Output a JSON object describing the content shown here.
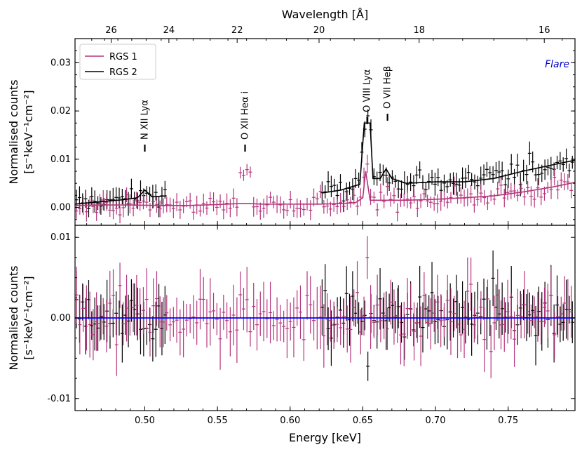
{
  "colors": {
    "rgs1": "#b5357d",
    "rgs2": "#000000",
    "zero_line": "#0000ff",
    "flare": "#0000cc"
  },
  "chart_data": [
    {
      "type": "scatter",
      "panel": "top",
      "flare_label": "Flare",
      "xlabel_top": "Wavelength [Å]",
      "ylabel_line1": "Normalised counts",
      "ylabel_line2": "[s⁻¹keV⁻¹cm⁻²]",
      "xlim": [
        0.452,
        0.796
      ],
      "ylim": [
        -0.0037,
        0.035
      ],
      "y_ticks": [
        {
          "value": 0.0,
          "label": "0.00"
        },
        {
          "value": 0.01,
          "label": "0.01"
        },
        {
          "value": 0.02,
          "label": "0.02"
        },
        {
          "value": 0.03,
          "label": "0.03"
        }
      ],
      "top_ticks": [
        {
          "wavelength": 26,
          "label": "26"
        },
        {
          "wavelength": 24,
          "label": "24"
        },
        {
          "wavelength": 22,
          "label": "22"
        },
        {
          "wavelength": 20,
          "label": "20"
        },
        {
          "wavelength": 18,
          "label": "18"
        },
        {
          "wavelength": 16,
          "label": "16"
        }
      ],
      "legend": [
        {
          "label": "RGS 1",
          "color": "#b5357d"
        },
        {
          "label": "RGS 2",
          "color": "#000000"
        }
      ],
      "annotations": [
        {
          "text": "N XII Lyα",
          "energy": 0.5,
          "mark_y": 0.0123
        },
        {
          "text": "O XII Heα i",
          "energy": 0.569,
          "mark_y": 0.0123
        },
        {
          "text": "O VIII Lyα",
          "energy": 0.653,
          "mark_y": 0.018
        },
        {
          "text": "O VII Heβ",
          "energy": 0.667,
          "mark_y": 0.0187
        }
      ],
      "series": [
        {
          "name": "RGS 1",
          "model_segments": [
            [
              [
                0.452,
                0.0004
              ],
              [
                0.47,
                0.0005
              ],
              [
                0.49,
                0.0005
              ],
              [
                0.51,
                0.0004
              ],
              [
                0.53,
                0.0004
              ],
              [
                0.55,
                0.0006
              ],
              [
                0.565,
                0.0008
              ],
              [
                0.572,
                0.0008
              ],
              [
                0.58,
                0.0007
              ],
              [
                0.6,
                0.0007
              ],
              [
                0.62,
                0.0007
              ],
              [
                0.635,
                0.0008
              ],
              [
                0.645,
                0.001
              ],
              [
                0.65,
                0.002
              ],
              [
                0.652,
                0.0075
              ],
              [
                0.655,
                0.0015
              ],
              [
                0.665,
                0.0015
              ],
              [
                0.68,
                0.0015
              ],
              [
                0.7,
                0.0017
              ],
              [
                0.72,
                0.002
              ],
              [
                0.74,
                0.0024
              ],
              [
                0.76,
                0.0032
              ],
              [
                0.78,
                0.0042
              ],
              [
                0.796,
                0.0052
              ]
            ]
          ]
        },
        {
          "name": "RGS 2",
          "model_segments": [
            [
              [
                0.452,
                0.0007
              ],
              [
                0.47,
                0.0012
              ],
              [
                0.485,
                0.0016
              ],
              [
                0.495,
                0.002
              ],
              [
                0.5,
                0.0036
              ],
              [
                0.505,
                0.0022
              ],
              [
                0.515,
                0.0024
              ]
            ],
            [
              [
                0.622,
                0.003
              ],
              [
                0.635,
                0.0036
              ],
              [
                0.648,
                0.0048
              ],
              [
                0.651,
                0.0175
              ],
              [
                0.655,
                0.0175
              ],
              [
                0.657,
                0.006
              ],
              [
                0.662,
                0.006
              ],
              [
                0.666,
                0.008
              ],
              [
                0.67,
                0.006
              ],
              [
                0.68,
                0.005
              ],
              [
                0.7,
                0.0053
              ],
              [
                0.72,
                0.0053
              ],
              [
                0.74,
                0.006
              ],
              [
                0.76,
                0.0075
              ],
              [
                0.78,
                0.0088
              ],
              [
                0.796,
                0.0098
              ]
            ]
          ]
        }
      ]
    },
    {
      "type": "scatter",
      "panel": "bottom",
      "xlabel": "Energy [keV]",
      "ylabel_line1": "Normalised counts",
      "ylabel_line2": "[s⁻¹keV⁻¹cm⁻²]",
      "xlim": [
        0.452,
        0.796
      ],
      "ylim": [
        -0.0115,
        0.0115
      ],
      "x_ticks": [
        {
          "value": 0.5,
          "label": "0.50"
        },
        {
          "value": 0.55,
          "label": "0.55"
        },
        {
          "value": 0.6,
          "label": "0.60"
        },
        {
          "value": 0.65,
          "label": "0.65"
        },
        {
          "value": 0.7,
          "label": "0.70"
        },
        {
          "value": 0.75,
          "label": "0.75"
        }
      ],
      "y_ticks": [
        {
          "value": 0.01,
          "label": "0.01"
        },
        {
          "value": 0.0,
          "label": "0.00"
        },
        {
          "value": -0.01,
          "label": "-0.01"
        }
      ],
      "zero_line": 0.0
    }
  ]
}
